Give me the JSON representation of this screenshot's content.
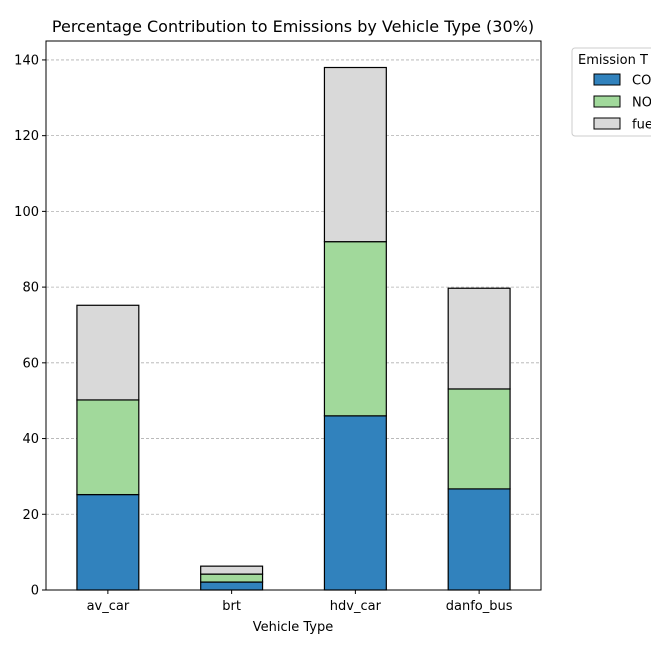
{
  "chart_data": {
    "type": "bar",
    "stacked": true,
    "title": "Percentage Contribution to Emissions by Vehicle Type (30%)",
    "xlabel": "Vehicle Type",
    "ylabel": "",
    "categories": [
      "av_car",
      "brt",
      "hdv_car",
      "danfo_bus"
    ],
    "series": [
      {
        "name": "CO",
        "color": "#3182bd",
        "values": [
          25.2,
          2.1,
          46.0,
          26.7
        ]
      },
      {
        "name": "NO",
        "color": "#a1d99b",
        "values": [
          25.0,
          2.1,
          46.0,
          26.4
        ]
      },
      {
        "name": "fue",
        "color": "#d9d9d9",
        "values": [
          25.0,
          2.1,
          46.0,
          26.6
        ]
      }
    ],
    "ylim": [
      0,
      145
    ],
    "yticks": [
      0,
      20,
      40,
      60,
      80,
      100,
      120,
      140
    ],
    "grid": "y-dashed",
    "legend": {
      "title": "Emission T",
      "placement": "outside-top-right"
    }
  }
}
